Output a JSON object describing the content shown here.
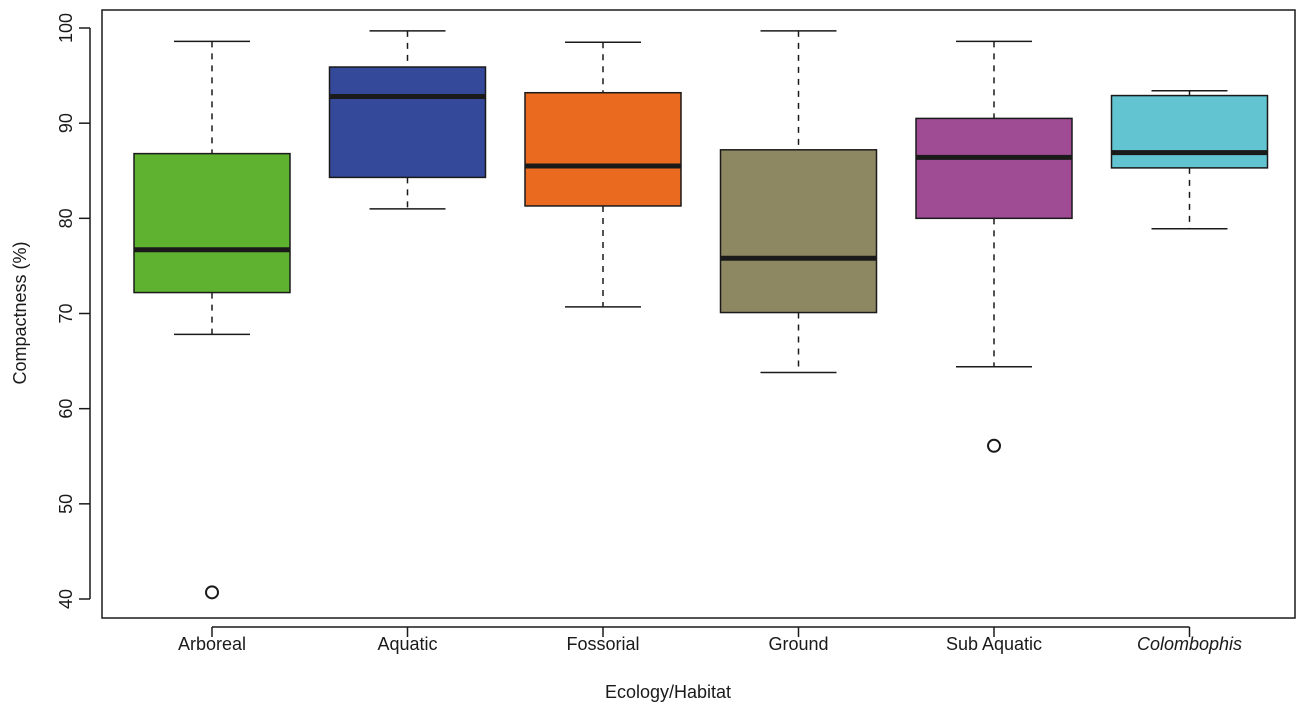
{
  "chart_data": {
    "type": "boxplot",
    "xlabel": "Ecology/Habitat",
    "ylabel": "Compactness (%)",
    "ylim": [
      37,
      103
    ],
    "yticks": [
      40,
      50,
      60,
      70,
      80,
      90,
      100
    ],
    "grid": false,
    "legend": "none",
    "categories": [
      {
        "label": "Arboreal",
        "italic": false,
        "color": "#5fb130",
        "whisker_low": 67.8,
        "q1": 72.2,
        "median": 76.7,
        "q3": 86.8,
        "whisker_high": 98.6,
        "outliers": [
          40.7
        ]
      },
      {
        "label": "Aquatic",
        "italic": false,
        "color": "#344999",
        "whisker_low": 81.0,
        "q1": 84.3,
        "median": 92.8,
        "q3": 95.9,
        "whisker_high": 99.7,
        "outliers": []
      },
      {
        "label": "Fossorial",
        "italic": false,
        "color": "#ea6a1f",
        "whisker_low": 70.7,
        "q1": 81.3,
        "median": 85.5,
        "q3": 93.2,
        "whisker_high": 98.5,
        "outliers": []
      },
      {
        "label": "Ground",
        "italic": false,
        "color": "#8e8862",
        "whisker_low": 63.8,
        "q1": 70.1,
        "median": 75.8,
        "q3": 87.2,
        "whisker_high": 99.7,
        "outliers": []
      },
      {
        "label": "Sub Aquatic",
        "italic": false,
        "color": "#a04c95",
        "whisker_low": 64.4,
        "q1": 80.0,
        "median": 86.4,
        "q3": 90.5,
        "whisker_high": 98.6,
        "outliers": [
          56.1
        ]
      },
      {
        "label": "Colombophis",
        "italic": true,
        "color": "#62c3d1",
        "whisker_low": 78.9,
        "q1": 85.3,
        "median": 86.9,
        "q3": 92.9,
        "whisker_high": 93.4,
        "outliers": []
      }
    ]
  }
}
